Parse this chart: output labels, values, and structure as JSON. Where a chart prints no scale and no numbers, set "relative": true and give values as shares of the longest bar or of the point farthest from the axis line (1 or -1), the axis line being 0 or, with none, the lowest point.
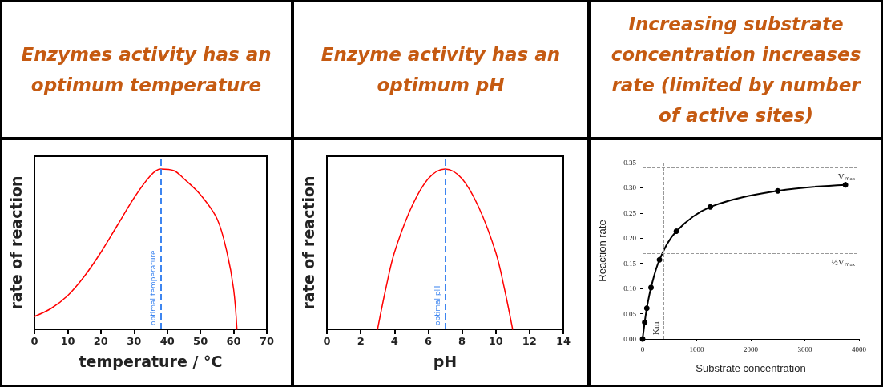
{
  "chart_data": [
    {
      "type": "line",
      "title": "Enzymes activity has an optimum temperature",
      "xlabel": "temperature / °C",
      "ylabel": "rate of reaction",
      "relative": true,
      "tick_labels": "x",
      "marker": "none",
      "line_style": "solid",
      "grid": false,
      "x": [
        0,
        5,
        10,
        15,
        20,
        25,
        30,
        35,
        38,
        42,
        45,
        50,
        55,
        58,
        60,
        61
      ],
      "series": [
        {
          "color": "#ff0000",
          "values": [
            0.08,
            0.13,
            0.21,
            0.33,
            0.48,
            0.65,
            0.82,
            0.96,
            1.0,
            0.99,
            0.94,
            0.84,
            0.69,
            0.48,
            0.25,
            0
          ]
        }
      ],
      "xlim": [
        0,
        70
      ],
      "xticks": [
        0,
        10,
        20,
        30,
        40,
        50,
        60,
        70
      ],
      "ref_lines": [
        {
          "axis": "x",
          "value": 38,
          "label": "optimal temperature",
          "color": "#3d85f0",
          "line_style": "dashed"
        }
      ]
    },
    {
      "type": "line",
      "title": "Enzyme activity has an optimum pH",
      "xlabel": "pH",
      "ylabel": "rate of reaction",
      "relative": true,
      "tick_labels": "x",
      "marker": "none",
      "line_style": "solid",
      "grid": false,
      "x": [
        3,
        3.5,
        4,
        5,
        6,
        7,
        8,
        9,
        10,
        10.5,
        11
      ],
      "series": [
        {
          "color": "#ff0000",
          "values": [
            0,
            0.26,
            0.48,
            0.76,
            0.94,
            1.0,
            0.94,
            0.76,
            0.48,
            0.26,
            0
          ]
        }
      ],
      "xlim": [
        0,
        14
      ],
      "xticks": [
        0,
        2,
        4,
        6,
        8,
        10,
        12,
        14
      ],
      "ref_lines": [
        {
          "axis": "x",
          "value": 7,
          "label": "optimal pH",
          "color": "#3d85f0",
          "line_style": "dashed"
        }
      ]
    },
    {
      "type": "line",
      "title": "Increasing substrate concentration increases rate (limited by number of active sites)",
      "xlabel": "Substrate concentration",
      "ylabel": "Reaction rate",
      "marker": "circle",
      "line_style": "solid",
      "grid": false,
      "x": [
        0,
        39,
        78,
        156,
        312,
        625,
        1250,
        2500,
        3750
      ],
      "series": [
        {
          "color": "#000000",
          "values": [
            0,
            0.033,
            0.061,
            0.102,
            0.157,
            0.214,
            0.262,
            0.294,
            0.306
          ]
        }
      ],
      "xlim": [
        0,
        4000
      ],
      "xticks": [
        0,
        1000,
        2000,
        3000,
        4000
      ],
      "ylim": [
        0,
        0.35
      ],
      "yticks": [
        {
          "value": 0,
          "label": "0.00"
        },
        {
          "value": 0.05,
          "label": "0.05"
        },
        {
          "value": 0.1,
          "label": "0.10"
        },
        {
          "value": 0.15,
          "label": "0.15"
        },
        {
          "value": 0.2,
          "label": "0.20"
        },
        {
          "value": 0.25,
          "label": "0.25"
        },
        {
          "value": 0.3,
          "label": "0.30"
        },
        {
          "value": 0.35,
          "label": "0.35"
        }
      ],
      "ref_lines": [
        {
          "axis": "y",
          "value": 0.34,
          "label": "Vₘₐₓ",
          "color": "#999999",
          "line_style": "dashed"
        },
        {
          "axis": "y",
          "value": 0.17,
          "label": "½Vₘₐₓ",
          "color": "#999999",
          "line_style": "dashed"
        },
        {
          "axis": "x",
          "value": 390,
          "label": "Km",
          "color": "#999999",
          "line_style": "dashed"
        }
      ]
    }
  ]
}
